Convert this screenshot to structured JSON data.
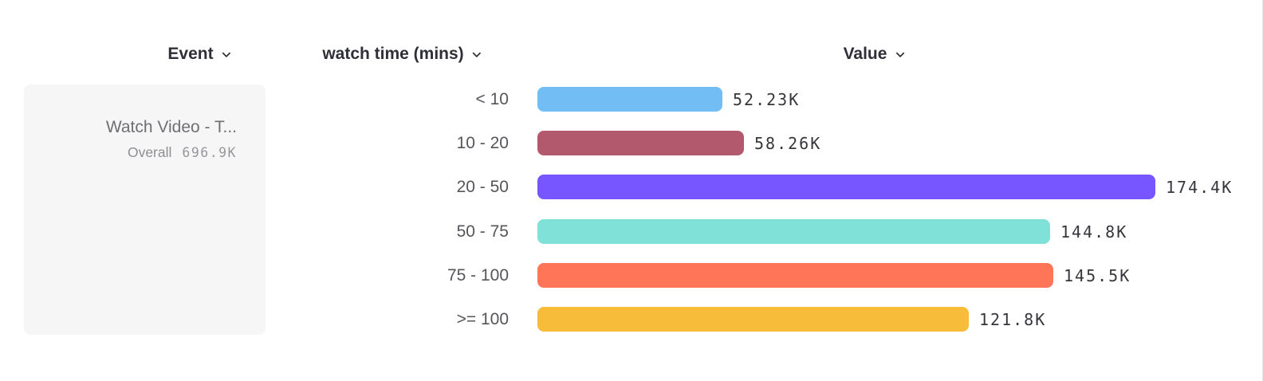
{
  "header": {
    "columns": [
      {
        "label": "Event"
      },
      {
        "label": "watch time (mins)"
      },
      {
        "label": "Value"
      }
    ]
  },
  "event_card": {
    "title": "Watch Video - T...",
    "overall_label": "Overall",
    "overall_value": "696.9K"
  },
  "chart_data": {
    "type": "bar",
    "orientation": "horizontal",
    "title": "",
    "xlabel": "Value",
    "ylabel": "watch time (mins)",
    "event": "Watch Video - T...",
    "overall_total": "696.9K",
    "categories": [
      "< 10",
      "10 - 20",
      "20 - 50",
      "50 - 75",
      "75 - 100",
      ">= 100"
    ],
    "values": [
      52230,
      58260,
      174400,
      144800,
      145500,
      121800
    ],
    "value_labels": [
      "52.23K",
      "58.26K",
      "174.4K",
      "144.8K",
      "145.5K",
      "121.8K"
    ],
    "colors": [
      "#72BEF4",
      "#B2596E",
      "#7856FF",
      "#80E1D9",
      "#FF7557",
      "#F8BC3B"
    ],
    "xlim": [
      0,
      174400
    ],
    "grid": false,
    "legend": false
  },
  "colors": {
    "header_text": "#2f2f37",
    "row_label_text": "#55555b",
    "value_text": "#36363c",
    "card_bg": "#f6f6f7",
    "card_title_text": "#6f6f74",
    "card_sub_text": "#8e8e93"
  }
}
